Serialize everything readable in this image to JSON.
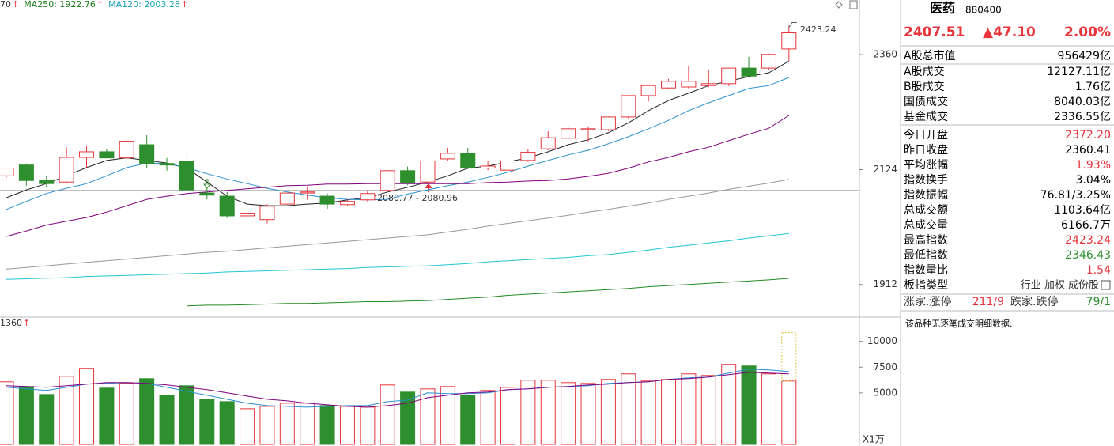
{
  "chart_data": [
    {
      "type": "candlestick",
      "ylog": true,
      "ylim": [
        1857,
        2481
      ],
      "yticks": [
        1912,
        2124,
        2360
      ],
      "up_color": "#e8343a",
      "down_color": "#2d8f2d",
      "reference_line": 2084,
      "open": [
        2112,
        2133,
        2103,
        2100,
        2148,
        2159,
        2147,
        2173,
        2136,
        2141,
        2079,
        2073,
        2036,
        2029,
        2058,
        2079,
        2073,
        2057,
        2066,
        2084,
        2122,
        2100,
        2145,
        2156,
        2127,
        2123,
        2142,
        2165,
        2186,
        2203,
        2203,
        2229,
        2273,
        2289,
        2291,
        2294,
        2298,
        2331,
        2331,
        2372.2
      ],
      "high": [
        2128,
        2136,
        2112,
        2168,
        2170,
        2165,
        2183,
        2192,
        2147,
        2153,
        2088,
        2081,
        2043,
        2058,
        2079,
        2091,
        2078,
        2067,
        2084,
        2122,
        2130,
        2141,
        2167,
        2167,
        2142,
        2147,
        2164,
        2200,
        2210,
        2210,
        2230,
        2273,
        2296,
        2308,
        2336,
        2328,
        2331,
        2355,
        2362,
        2423.24
      ],
      "low": [
        2109,
        2093,
        2090,
        2097,
        2128,
        2147,
        2144,
        2128,
        2122,
        2082,
        2067,
        2032,
        2035,
        2022,
        2057,
        2066,
        2049,
        2055,
        2063,
        2082,
        2094,
        2097,
        2142,
        2125,
        2123,
        2116,
        2139,
        2162,
        2184,
        2178,
        2200,
        2226,
        2261,
        2286,
        2288,
        2291,
        2293,
        2314,
        2328,
        2346.43
      ],
      "close": [
        2127,
        2103,
        2097,
        2148,
        2159,
        2147,
        2180,
        2136,
        2133,
        2085,
        2075,
        2036,
        2041,
        2054,
        2079,
        2081,
        2058,
        2063,
        2078,
        2122,
        2099,
        2141,
        2156,
        2127,
        2131,
        2141,
        2158,
        2187,
        2205,
        2205,
        2229,
        2273,
        2294,
        2303,
        2303,
        2298,
        2331,
        2314,
        2360.41,
        2407.51
      ],
      "ma_lines": [
        {
          "color": "#222222",
          "values": [
            2070,
            2085,
            2097,
            2112,
            2128,
            2142,
            2147,
            2142,
            2137,
            2127,
            2100,
            2073,
            2058,
            2055,
            2055,
            2058,
            2060,
            2066,
            2070,
            2081,
            2090,
            2100,
            2112,
            2127,
            2131,
            2139,
            2147,
            2159,
            2173,
            2183,
            2197,
            2217,
            2242,
            2263,
            2278,
            2294,
            2303,
            2313,
            2321,
            2346
          ]
        },
        {
          "color": "#2a8fd0",
          "values": [
            2048,
            2063,
            2078,
            2088,
            2097,
            2112,
            2128,
            2137,
            2136,
            2128,
            2116,
            2106,
            2097,
            2088,
            2081,
            2075,
            2070,
            2067,
            2066,
            2067,
            2077,
            2085,
            2093,
            2100,
            2109,
            2119,
            2131,
            2142,
            2153,
            2162,
            2175,
            2189,
            2205,
            2222,
            2242,
            2258,
            2273,
            2288,
            2294,
            2311
          ]
        },
        {
          "color": "#800080",
          "values": [
            1998,
            2008,
            2019,
            2026,
            2033,
            2043,
            2055,
            2067,
            2073,
            2078,
            2081,
            2084,
            2087,
            2090,
            2093,
            2094,
            2096,
            2096,
            2097,
            2097,
            2097,
            2097,
            2097,
            2097,
            2099,
            2100,
            2102,
            2103,
            2106,
            2111,
            2117,
            2127,
            2139,
            2148,
            2159,
            2168,
            2181,
            2194,
            2206,
            2232
          ]
        },
        {
          "color": "#999999",
          "values": [
            1939,
            1942,
            1945,
            1948,
            1951,
            1954,
            1957,
            1960,
            1963,
            1966,
            1969,
            1971,
            1974,
            1977,
            1980,
            1983,
            1986,
            1989,
            1992,
            1995,
            1998,
            2001,
            2006,
            2011,
            2017,
            2022,
            2027,
            2032,
            2037,
            2043,
            2048,
            2054,
            2060,
            2067,
            2073,
            2079,
            2086,
            2092,
            2098,
            2105
          ]
        },
        {
          "color": "#22c5d5",
          "values": [
            1921,
            1922,
            1923,
            1924,
            1926,
            1927,
            1928,
            1929,
            1930,
            1931,
            1932,
            1934,
            1935,
            1936,
            1937,
            1938,
            1939,
            1940,
            1942,
            1943,
            1944,
            1945,
            1947,
            1949,
            1952,
            1954,
            1956,
            1958,
            1960,
            1963,
            1965,
            1969,
            1973,
            1978,
            1982,
            1986,
            1990,
            1995,
            1999,
            2003.28
          ]
        },
        {
          "color": "#228b22",
          "values": [
            null,
            null,
            null,
            null,
            null,
            null,
            null,
            null,
            null,
            1875,
            1876,
            1876,
            1877,
            1878,
            1879,
            1879,
            1880,
            1881,
            1882,
            1882,
            1883,
            1884,
            1886,
            1888,
            1890,
            1893,
            1895,
            1897,
            1899,
            1901,
            1903,
            1905,
            1908,
            1910,
            1912,
            1914,
            1916,
            1918,
            1920,
            1922.76
          ]
        }
      ],
      "legend": [
        {
          "label": "70",
          "color": "#333333"
        },
        {
          "label": "MA250: 1922.76",
          "color": "#1a7a1a"
        },
        {
          "label": "MA120: 2003.28",
          "color": "#17a2b2"
        }
      ],
      "legend_arrow": "↑",
      "annotations": [
        {
          "label": "2423.24"
        },
        {
          "label": "2080.77 - 2080.96"
        }
      ]
    },
    {
      "type": "volume",
      "ylim": [
        0,
        12200
      ],
      "yticks": [
        5000,
        7500,
        10000
      ],
      "unit": "X1万",
      "values": [
        6077,
        5615,
        4846,
        6615,
        7385,
        5462,
        5923,
        6385,
        4769,
        5692,
        4385,
        4154,
        3462,
        3692,
        4000,
        4000,
        3769,
        3692,
        3615,
        5769,
        5077,
        5385,
        5615,
        4769,
        5231,
        5538,
        6231,
        6231,
        6000,
        5923,
        6308,
        6846,
        6154,
        6308,
        6846,
        6692,
        7769,
        7615,
        6846,
        6154
      ],
      "projected_value": 10846,
      "ma_lines": [
        {
          "color": "#2a8fd0",
          "values": [
            5538,
            5385,
            5231,
            5538,
            5846,
            5923,
            6000,
            5923,
            5538,
            5154,
            4769,
            4385,
            4000,
            3769,
            3692,
            3615,
            3692,
            3769,
            3769,
            4154,
            4308,
            5000,
            4923,
            4923,
            5000,
            5308,
            5385,
            5538,
            5615,
            5692,
            5923,
            6000,
            6077,
            6308,
            6462,
            6538,
            6923,
            7308,
            7231,
            7077
          ]
        },
        {
          "color": "#800080",
          "values": [
            5692,
            5615,
            5538,
            5692,
            5846,
            6000,
            6000,
            5923,
            5769,
            5538,
            5308,
            5000,
            4692,
            4385,
            4231,
            4000,
            3846,
            3692,
            3615,
            3769,
            4000,
            4538,
            4769,
            5000,
            5077,
            5308,
            5385,
            5538,
            5615,
            5769,
            5846,
            6000,
            6077,
            6308,
            6385,
            6538,
            6769,
            7000,
            6923,
            6846
          ]
        }
      ],
      "legend": [
        {
          "label": "1360",
          "color": "#333333"
        }
      ]
    }
  ],
  "panel": {
    "name": "医药",
    "code": "880400",
    "price": "2407.51",
    "change": "▲47.10",
    "change_pct": "2.00%",
    "quote_color": "#e8343a",
    "row_groups": [
      [
        {
          "label": "A股总市值",
          "value": "956429亿",
          "color": "#000000"
        }
      ],
      [
        {
          "label": "A股成交",
          "value": "12127.11亿",
          "color": "#000000"
        },
        {
          "label": "B股成交",
          "value": "1.76亿",
          "color": "#000000"
        },
        {
          "label": "国债成交",
          "value": "8040.03亿",
          "color": "#000000"
        },
        {
          "label": "基金成交",
          "value": "2336.55亿",
          "color": "#000000"
        }
      ],
      [
        {
          "label": "今日开盘",
          "value": "2372.20",
          "color": "#e8343a"
        },
        {
          "label": "昨日收盘",
          "value": "2360.41",
          "color": "#000000"
        },
        {
          "label": "平均涨幅",
          "value": "1.93%",
          "color": "#e8343a"
        },
        {
          "label": "指数换手",
          "value": "3.04%",
          "color": "#000000"
        },
        {
          "label": "指数振幅",
          "value": "76.81/3.25%",
          "color": "#000000"
        },
        {
          "label": "总成交额",
          "value": "1103.64亿",
          "color": "#000000"
        },
        {
          "label": "总成交量",
          "value": "6166.7万",
          "color": "#000000"
        },
        {
          "label": "最高指数",
          "value": "2423.24",
          "color": "#e8343a"
        },
        {
          "label": "最低指数",
          "value": "2346.43",
          "color": "#2d8f2d"
        },
        {
          "label": "指数量比",
          "value": "1.54",
          "color": "#e8343a"
        }
      ],
      [
        {
          "label": "板指类型",
          "value": "行业 加权 成份股",
          "color": "#333333"
        }
      ]
    ],
    "breadth": {
      "up_label": "涨家.涨停",
      "up": "211/9",
      "up_color": "#e8343a",
      "down_label": "跌家.跌停",
      "down": "79/1",
      "down_color": "#2d8f2d"
    },
    "message": "该品种无逐笔成交明细数据."
  }
}
